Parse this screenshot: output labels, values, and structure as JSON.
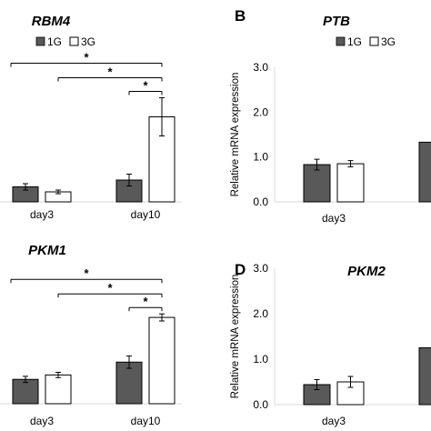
{
  "legend": {
    "series_1": "1G",
    "series_2": "3G"
  },
  "colors": {
    "series_1": "#595959",
    "series_2": "#ffffff",
    "stroke": "#000000"
  },
  "chart_data": [
    {
      "type": "bar",
      "panel_letter": "",
      "title": "RBM4",
      "ylabel": "",
      "ylim": [
        0,
        3.0
      ],
      "yticks": [],
      "categories": [
        "day3",
        "day10"
      ],
      "series": [
        {
          "name": "1G",
          "values": [
            0.33,
            0.48
          ],
          "errors": [
            0.07,
            0.13
          ]
        },
        {
          "name": "3G",
          "values": [
            0.22,
            1.87
          ],
          "errors": [
            0.04,
            0.42
          ]
        }
      ],
      "significance": [
        {
          "label": "*",
          "from": "day3-1G",
          "to": "day10-3G"
        },
        {
          "label": "*",
          "from": "day3-3G",
          "to": "day10-3G"
        },
        {
          "label": "*",
          "from": "day10-1G",
          "to": "day10-3G"
        }
      ]
    },
    {
      "type": "bar",
      "panel_letter": "B",
      "title": "PTB",
      "ylabel": "Relative mRNA expression",
      "ylim": [
        0,
        3.0
      ],
      "yticks": [
        "0.0",
        "1.0",
        "2.0",
        "3.0"
      ],
      "categories": [
        "day3"
      ],
      "series": [
        {
          "name": "1G",
          "values": [
            0.83
          ],
          "errors": [
            0.12
          ]
        },
        {
          "name": "3G",
          "values": [
            0.85
          ],
          "errors": [
            0.07
          ]
        }
      ]
    },
    {
      "type": "bar",
      "panel_letter": "",
      "title": "PKM1",
      "ylabel": "",
      "ylim": [
        0,
        3.0
      ],
      "yticks": [],
      "categories": [
        "day3",
        "day10"
      ],
      "series": [
        {
          "name": "1G",
          "values": [
            0.55,
            0.94
          ],
          "errors": [
            0.07,
            0.14
          ]
        },
        {
          "name": "3G",
          "values": [
            0.65,
            1.95
          ],
          "errors": [
            0.06,
            0.08
          ]
        }
      ],
      "significance": [
        {
          "label": "*",
          "from": "day3-1G",
          "to": "day10-3G"
        },
        {
          "label": "*",
          "from": "day3-3G",
          "to": "day10-3G"
        },
        {
          "label": "*",
          "from": "day10-1G",
          "to": "day10-3G"
        }
      ]
    },
    {
      "type": "bar",
      "panel_letter": "D",
      "title": "PKM2",
      "ylabel": "Relative mRNA expression",
      "ylim": [
        0,
        3.0
      ],
      "yticks": [
        "0.0",
        "1.0",
        "2.0",
        "3.0"
      ],
      "categories": [
        "day3"
      ],
      "series": [
        {
          "name": "1G",
          "values": [
            0.44
          ],
          "errors": [
            0.11
          ]
        },
        {
          "name": "3G",
          "values": [
            0.5
          ],
          "errors": [
            0.12
          ]
        }
      ]
    }
  ]
}
